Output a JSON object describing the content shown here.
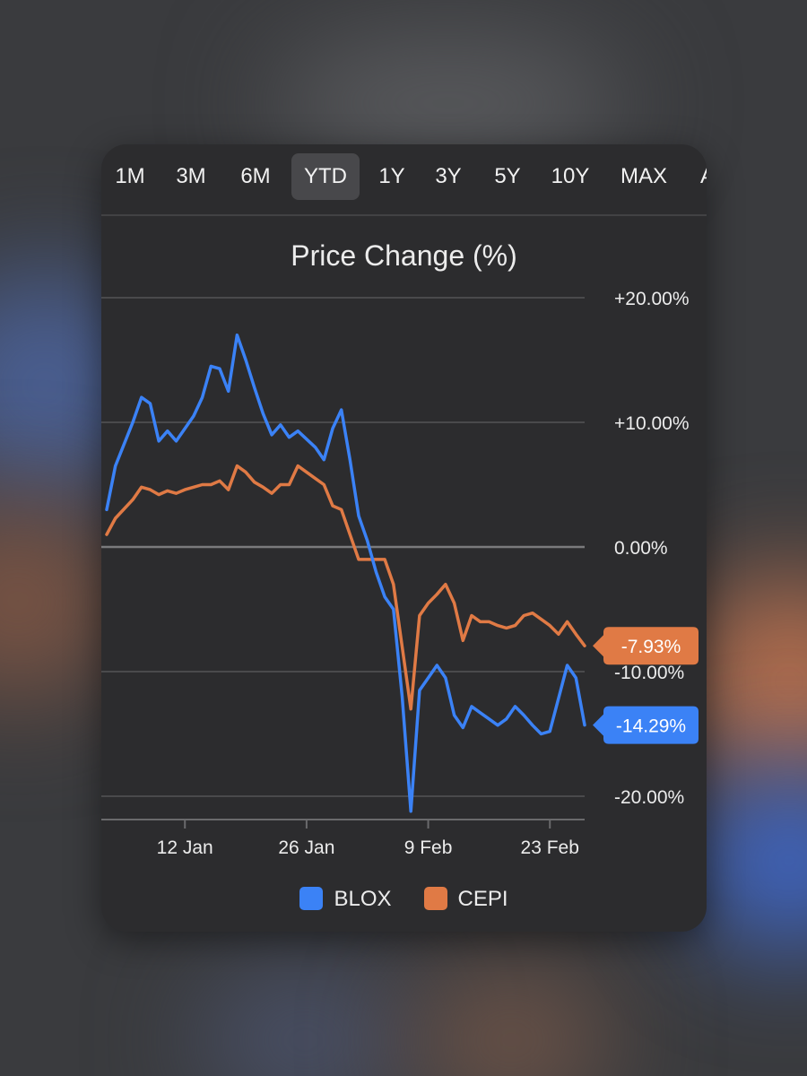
{
  "tabs": {
    "items": [
      "1M",
      "3M",
      "6M",
      "YTD",
      "1Y",
      "3Y",
      "5Y",
      "10Y",
      "MAX",
      "A"
    ],
    "active": "YTD"
  },
  "chart_data": {
    "type": "line",
    "title": "Price Change (%)",
    "xlabel": "",
    "ylabel": "",
    "ylim": [
      -22,
      20
    ],
    "y_ticks": [
      20,
      10,
      0,
      -10,
      -20
    ],
    "y_tick_labels": [
      "+20.00%",
      "+10.00%",
      "0.00%",
      "-10.00%",
      "-20.00%"
    ],
    "x_ticks": [
      {
        "day": 12,
        "label": "12 Jan"
      },
      {
        "day": 26,
        "label": "26 Jan"
      },
      {
        "day": 40,
        "label": "9 Feb"
      },
      {
        "day": 54,
        "label": "23 Feb"
      }
    ],
    "grid": true,
    "legend_position": "bottom",
    "series": [
      {
        "name": "BLOX",
        "color": "#3b82f6",
        "last_label": "-14.29%",
        "points": [
          [
            3,
            3.0
          ],
          [
            4,
            6.5
          ],
          [
            6,
            10.0
          ],
          [
            7,
            12.0
          ],
          [
            8,
            11.5
          ],
          [
            9,
            8.5
          ],
          [
            10,
            9.3
          ],
          [
            11,
            8.5
          ],
          [
            13,
            10.5
          ],
          [
            14,
            12.0
          ],
          [
            15,
            14.5
          ],
          [
            16,
            14.3
          ],
          [
            17,
            12.5
          ],
          [
            18,
            17.0
          ],
          [
            19,
            15.0
          ],
          [
            20,
            12.8
          ],
          [
            21,
            10.7
          ],
          [
            22,
            9.0
          ],
          [
            23,
            9.8
          ],
          [
            24,
            8.8
          ],
          [
            25,
            9.3
          ],
          [
            27,
            8.0
          ],
          [
            28,
            7.0
          ],
          [
            29,
            9.5
          ],
          [
            30,
            11.0
          ],
          [
            31,
            7.0
          ],
          [
            32,
            2.5
          ],
          [
            33,
            0.5
          ],
          [
            34,
            -2.0
          ],
          [
            35,
            -4.0
          ],
          [
            36,
            -5.0
          ],
          [
            37,
            -12.0
          ],
          [
            38,
            -21.2
          ],
          [
            39,
            -11.5
          ],
          [
            40,
            -10.5
          ],
          [
            41,
            -9.5
          ],
          [
            42,
            -10.5
          ],
          [
            43,
            -13.5
          ],
          [
            44,
            -14.5
          ],
          [
            45,
            -12.8
          ],
          [
            46,
            -13.3
          ],
          [
            47,
            -13.8
          ],
          [
            48,
            -14.3
          ],
          [
            49,
            -13.8
          ],
          [
            50,
            -12.8
          ],
          [
            51,
            -13.5
          ],
          [
            52,
            -14.3
          ],
          [
            53,
            -15.0
          ],
          [
            54,
            -14.8
          ],
          [
            56,
            -9.5
          ],
          [
            57,
            -10.5
          ],
          [
            58,
            -14.29
          ]
        ]
      },
      {
        "name": "CEPI",
        "color": "#e07a45",
        "last_label": "-7.93%",
        "points": [
          [
            3,
            1.0
          ],
          [
            4,
            2.3
          ],
          [
            6,
            3.8
          ],
          [
            7,
            4.8
          ],
          [
            8,
            4.6
          ],
          [
            9,
            4.2
          ],
          [
            10,
            4.5
          ],
          [
            11,
            4.3
          ],
          [
            12,
            4.6
          ],
          [
            13,
            4.8
          ],
          [
            14,
            5.0
          ],
          [
            15,
            5.0
          ],
          [
            16,
            5.3
          ],
          [
            17,
            4.6
          ],
          [
            18,
            6.5
          ],
          [
            19,
            6.0
          ],
          [
            20,
            5.2
          ],
          [
            21,
            4.8
          ],
          [
            22,
            4.3
          ],
          [
            23,
            5.0
          ],
          [
            24,
            5.0
          ],
          [
            25,
            6.5
          ],
          [
            26,
            6.0
          ],
          [
            27,
            5.5
          ],
          [
            28,
            5.0
          ],
          [
            29,
            3.3
          ],
          [
            30,
            3.0
          ],
          [
            31,
            1.0
          ],
          [
            32,
            -1.0
          ],
          [
            33,
            -1.0
          ],
          [
            34,
            -1.0
          ],
          [
            35,
            -1.0
          ],
          [
            36,
            -3.0
          ],
          [
            37,
            -8.0
          ],
          [
            38,
            -13.0
          ],
          [
            39,
            -5.5
          ],
          [
            40,
            -4.5
          ],
          [
            41,
            -3.8
          ],
          [
            42,
            -3.0
          ],
          [
            43,
            -4.5
          ],
          [
            44,
            -7.5
          ],
          [
            45,
            -5.5
          ],
          [
            46,
            -6.0
          ],
          [
            47,
            -6.0
          ],
          [
            48,
            -6.3
          ],
          [
            49,
            -6.5
          ],
          [
            50,
            -6.3
          ],
          [
            51,
            -5.5
          ],
          [
            52,
            -5.3
          ],
          [
            53,
            -5.8
          ],
          [
            54,
            -6.3
          ],
          [
            55,
            -7.0
          ],
          [
            56,
            -6.0
          ],
          [
            57,
            -7.0
          ],
          [
            58,
            -7.93
          ]
        ]
      }
    ]
  }
}
